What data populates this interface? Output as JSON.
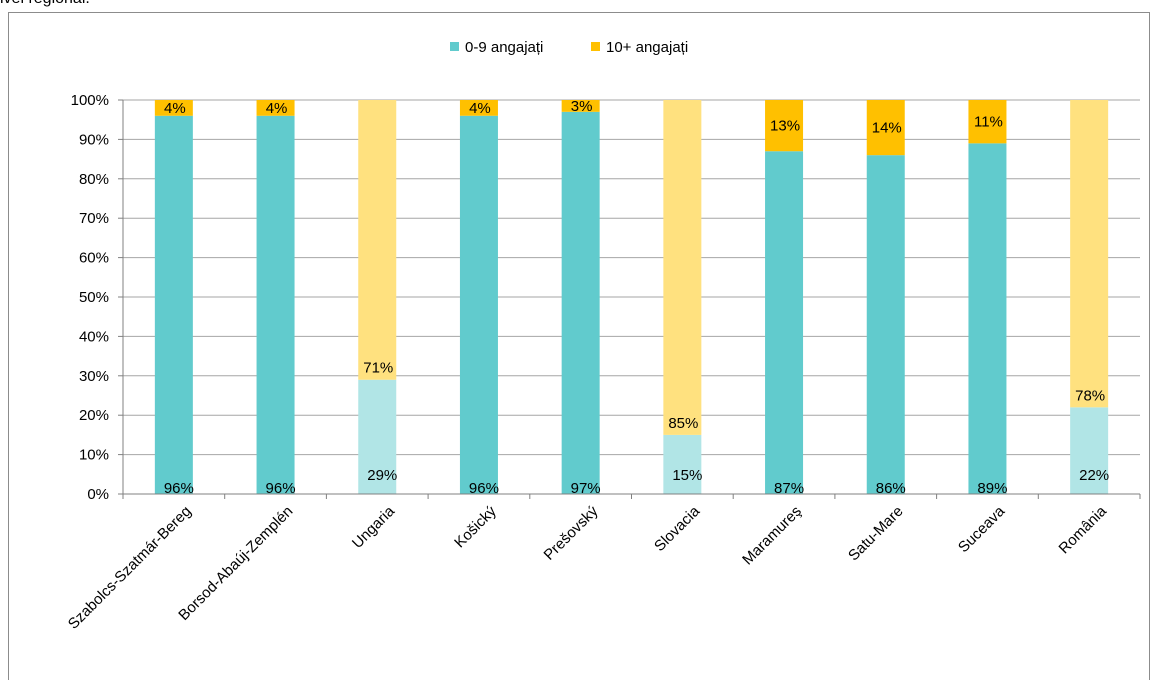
{
  "page": {
    "top_text": "ivel regional."
  },
  "chart_data": {
    "type": "bar",
    "stacked": true,
    "percent": true,
    "categories": [
      "Szabolcs-Szatmár-Bereg",
      "Borsod-Abaúj-Zemplén",
      "Ungaria",
      "Košický",
      "Prešovský",
      "Slovacia",
      "Maramureş",
      "Satu-Mare",
      "Suceava",
      "România"
    ],
    "series": [
      {
        "name": "0-9 angajați",
        "values": [
          96,
          96,
          29,
          96,
          97,
          15,
          87,
          86,
          89,
          22
        ],
        "labels": [
          "96%",
          "96%",
          "29%",
          "96%",
          "97%",
          "15%",
          "87%",
          "86%",
          "89%",
          "22%"
        ]
      },
      {
        "name": "10+ angajați",
        "values": [
          4,
          4,
          71,
          4,
          3,
          85,
          13,
          14,
          11,
          78
        ],
        "labels": [
          "4%",
          "4%",
          "71%",
          "4%",
          "3%",
          "85%",
          "13%",
          "14%",
          "11%",
          "78%"
        ]
      }
    ],
    "highlighted_categories": [
      "Ungaria",
      "Slovacia",
      "România"
    ],
    "y_ticks": [
      "0%",
      "10%",
      "20%",
      "30%",
      "40%",
      "50%",
      "60%",
      "70%",
      "80%",
      "90%",
      "100%"
    ],
    "ylim": [
      0,
      100
    ],
    "grid": true,
    "legend_position": "top-center",
    "colors": {
      "series_0": "#61cbcd",
      "series_1": "#ffc000",
      "series_0_light": "#b1e5e6",
      "series_1_light": "#ffe17f",
      "grid": "#a6a6a6",
      "axis": "#808080"
    }
  }
}
